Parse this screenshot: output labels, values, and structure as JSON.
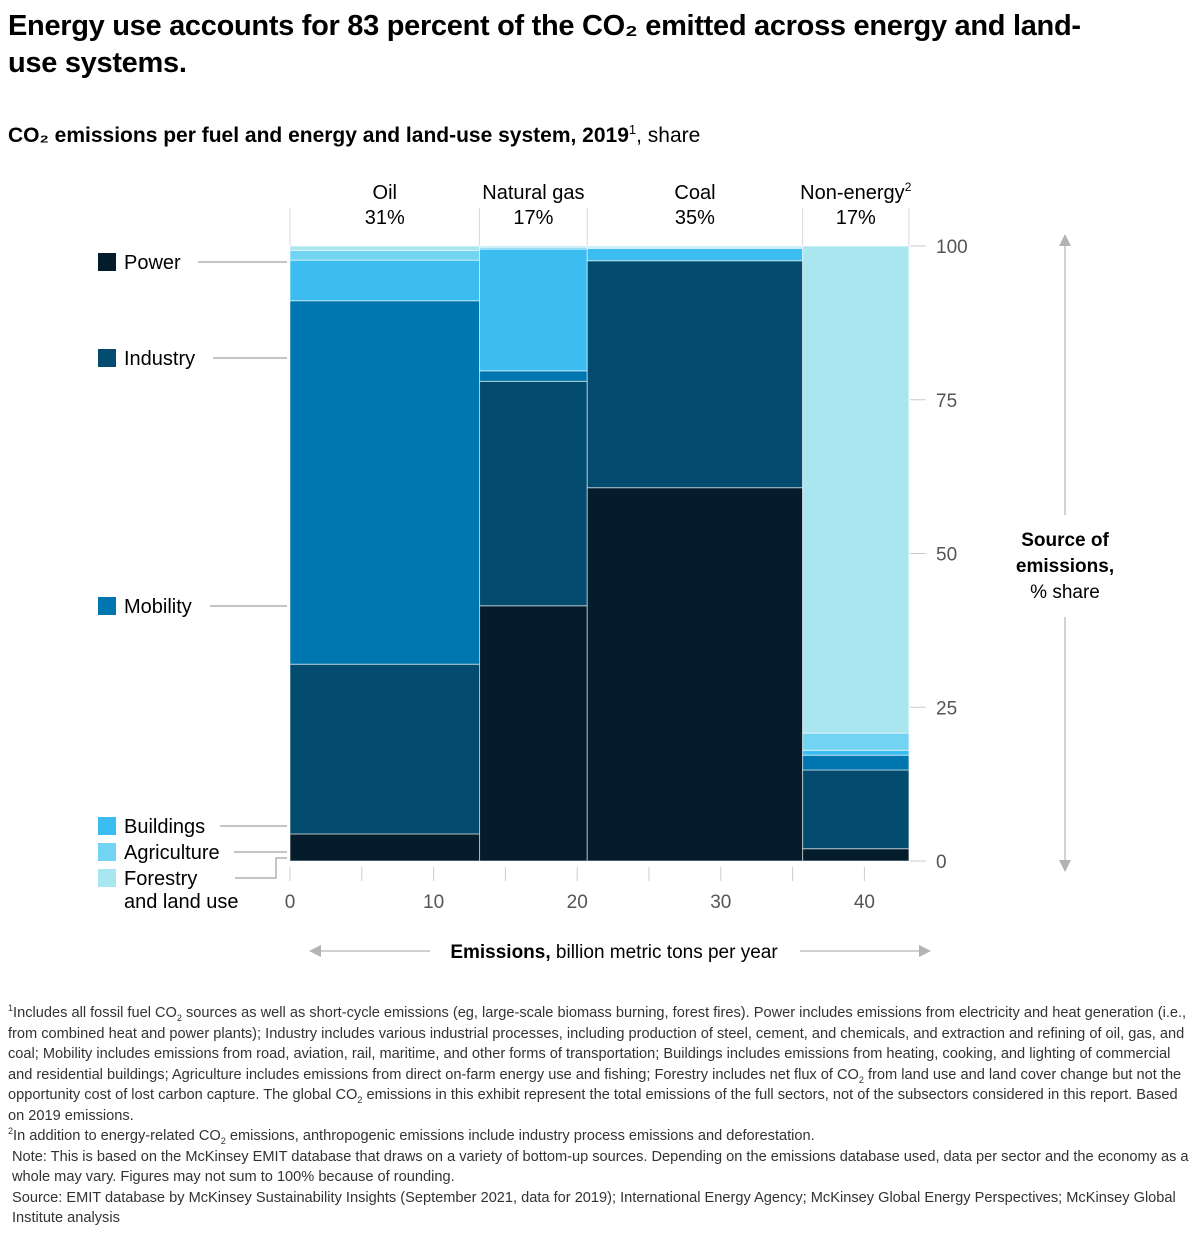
{
  "title": "Energy use accounts for 83 percent of the CO₂ emitted across energy and land-use systems.",
  "subtitle": {
    "bold": "CO₂ emissions per fuel and energy and land-use system, 2019",
    "sup": "1",
    "rest": ", share"
  },
  "chart_data": {
    "type": "bar",
    "subtype": "marimekko",
    "title": "CO₂ emissions per fuel and energy and land-use system, 2019, share",
    "xlabel": "Emissions, billion metric tons per year",
    "xlabel_bold": "Emissions,",
    "xlabel_rest": " billion metric tons per year",
    "ylabel": "Source of emissions, % share",
    "ylabel_bold": [
      "Source of",
      "emissions,"
    ],
    "ylabel_rest": "% share",
    "xlim": [
      0,
      43.1
    ],
    "ylim": [
      0,
      100
    ],
    "x_ticks": [
      0,
      10,
      20,
      30,
      40
    ],
    "y_ticks": [
      0,
      25,
      50,
      75,
      100
    ],
    "legend_position": "left",
    "categories": [
      {
        "name": "Oil",
        "sup": "",
        "share_label": "31%",
        "x_start": 0,
        "x_end": 13.2
      },
      {
        "name": "Natural gas",
        "sup": "",
        "share_label": "17%",
        "x_start": 13.2,
        "x_end": 20.7
      },
      {
        "name": "Coal",
        "sup": "",
        "share_label": "35%",
        "x_start": 20.7,
        "x_end": 35.7
      },
      {
        "name": "Non-energy",
        "sup": "2",
        "share_label": "17%",
        "x_start": 35.7,
        "x_end": 43.1
      }
    ],
    "series": [
      {
        "name": "Power",
        "color": "#051c2c",
        "values": [
          4.4,
          41.5,
          60.7,
          2.0
        ]
      },
      {
        "name": "Industry",
        "color": "#034b6f",
        "values": [
          27.6,
          36.5,
          36.9,
          12.8
        ]
      },
      {
        "name": "Mobility",
        "color": "#0076b0",
        "values": [
          59.1,
          1.7,
          0.0,
          2.4
        ]
      },
      {
        "name": "Buildings",
        "color": "#3bbdf2",
        "values": [
          6.6,
          19.8,
          2.0,
          0.8
        ]
      },
      {
        "name": "Agriculture",
        "color": "#72d3f2",
        "values": [
          1.6,
          0.3,
          0.2,
          2.8
        ]
      },
      {
        "name": "Forestry and land use",
        "color": "#aae6f0",
        "values": [
          0.7,
          0.2,
          0.2,
          79.2
        ]
      }
    ],
    "legend": [
      {
        "label": "Power",
        "lines": [
          "Power"
        ],
        "color": "#051c2c"
      },
      {
        "label": "Industry",
        "lines": [
          "Industry"
        ],
        "color": "#034b6f"
      },
      {
        "label": "Mobility",
        "lines": [
          "Mobility"
        ],
        "color": "#0076b0"
      },
      {
        "label": "Buildings",
        "lines": [
          "Buildings"
        ],
        "color": "#3bbdf2"
      },
      {
        "label": "Agriculture",
        "lines": [
          "Agriculture"
        ],
        "color": "#72d3f2"
      },
      {
        "label": "Forestry and land use",
        "lines": [
          "Forestry",
          "and land use"
        ],
        "color": "#aae6f0"
      }
    ]
  },
  "footnotes": {
    "fn1_num": "1",
    "fn1_a": "Includes all fossil fuel CO",
    "fn1_b": " sources as well as short-cycle emissions (eg, large-scale biomass burning, forest fires). Power includes emissions from electricity and heat generation (i.e., from combined heat and power plants); Industry includes various industrial processes, including production of steel, cement, and chemicals, and extraction and refining of oil, gas, and coal; Mobility includes emissions from road, aviation, rail, maritime, and other forms of transportation; Buildings includes emissions from heating, cooking, and lighting of commercial and residential buildings; Agriculture includes emissions from direct on-farm energy use and fishing; Forestry includes net flux of CO",
    "fn1_c": " from land use and land cover change but not the opportunity cost of lost carbon capture. The global CO",
    "fn1_d": " emissions in this exhibit represent the total emissions of the full sectors, not of the subsectors considered in this report. Based on 2019 emissions.",
    "fn2_num": "2",
    "fn2_a": "In addition to energy-related CO",
    "fn2_b": " emissions, anthropogenic emissions include industry process emissions and deforestation.",
    "note": "Note: This is based on the McKinsey EMIT database that draws on a variety of bottom-up sources. Depending on the emissions database used, data per sector and the economy as a whole may vary. Figures may not sum to 100% because of rounding.",
    "source": "Source: EMIT database by McKinsey Sustainability Insights (September 2021, data for 2019); International Energy Agency; McKinsey Global Energy Perspectives; McKinsey Global Institute analysis",
    "sub2": "2"
  }
}
